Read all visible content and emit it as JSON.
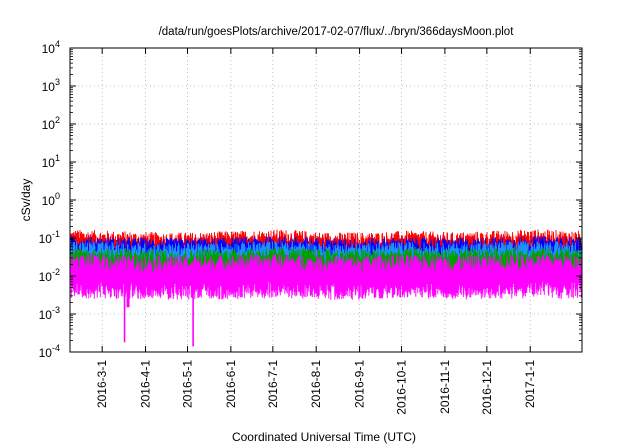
{
  "chart_data": {
    "type": "line",
    "title": "/data/run/goesPlots/archive/2017-02-07/flux/../bryn/366daysMoon.plot",
    "xlabel": "Coordinated Universal Time (UTC)",
    "ylabel": "cSv/day",
    "yscale": "log",
    "ylim": [
      0.0001,
      10000
    ],
    "xlim": [
      "2016-02-07",
      "2017-02-07"
    ],
    "y_ticks": [
      {
        "value": 0.0001,
        "base": "10",
        "exp": "-4"
      },
      {
        "value": 0.001,
        "base": "10",
        "exp": "-3"
      },
      {
        "value": 0.01,
        "base": "10",
        "exp": "-2"
      },
      {
        "value": 0.1,
        "base": "10",
        "exp": "-1"
      },
      {
        "value": 1,
        "base": "10",
        "exp": "0"
      },
      {
        "value": 10,
        "base": "10",
        "exp": "1"
      },
      {
        "value": 100,
        "base": "10",
        "exp": "2"
      },
      {
        "value": 1000,
        "base": "10",
        "exp": "3"
      },
      {
        "value": 10000,
        "base": "10",
        "exp": "4"
      }
    ],
    "x_ticks": [
      {
        "date": "2016-03-01",
        "label": "2016-3-1"
      },
      {
        "date": "2016-04-01",
        "label": "2016-4-1"
      },
      {
        "date": "2016-05-01",
        "label": "2016-5-1"
      },
      {
        "date": "2016-06-01",
        "label": "2016-6-1"
      },
      {
        "date": "2016-07-01",
        "label": "2016-7-1"
      },
      {
        "date": "2016-08-01",
        "label": "2016-8-1"
      },
      {
        "date": "2016-09-01",
        "label": "2016-9-1"
      },
      {
        "date": "2016-10-01",
        "label": "2016-10-1"
      },
      {
        "date": "2016-11-01",
        "label": "2016-11-1"
      },
      {
        "date": "2016-12-01",
        "label": "2016-12-1"
      },
      {
        "date": "2017-01-01",
        "label": "2017-1-1"
      }
    ],
    "grid": true,
    "legend": "none",
    "series": [
      {
        "color": "#ff0000",
        "values": [
          0.06,
          0.055,
          0.05,
          0.05,
          0.055,
          0.06,
          0.05,
          0.05,
          0.055,
          0.05,
          0.055,
          0.06,
          0.055,
          0.055
        ]
      },
      {
        "color": "#0000ff",
        "values": [
          0.04,
          0.037,
          0.035,
          0.035,
          0.037,
          0.04,
          0.035,
          0.035,
          0.037,
          0.035,
          0.037,
          0.04,
          0.037,
          0.037
        ]
      },
      {
        "color": "#1e90ff",
        "values": [
          0.03,
          0.028,
          0.026,
          0.026,
          0.028,
          0.03,
          0.026,
          0.026,
          0.028,
          0.026,
          0.028,
          0.03,
          0.028,
          0.028
        ]
      },
      {
        "color": "#00a000",
        "values": [
          0.02,
          0.019,
          0.018,
          0.018,
          0.019,
          0.02,
          0.018,
          0.018,
          0.019,
          0.018,
          0.019,
          0.02,
          0.019,
          0.019
        ]
      },
      {
        "color": "#ff00ff",
        "values": [
          0.01,
          0.0095,
          0.009,
          0.009,
          0.0095,
          0.01,
          0.009,
          0.009,
          0.0095,
          0.009,
          0.0095,
          0.01,
          0.0095,
          0.0095
        ]
      }
    ],
    "series_dates": [
      "2016-02-07",
      "2016-03-07",
      "2016-04-07",
      "2016-05-07",
      "2016-06-07",
      "2016-07-07",
      "2016-08-07",
      "2016-09-07",
      "2016-10-07",
      "2016-11-07",
      "2016-12-07",
      "2017-01-07",
      "2017-02-01",
      "2017-02-07"
    ],
    "dips": [
      {
        "date": "2016-03-17",
        "value": 0.00018,
        "color": "#ff00ff"
      },
      {
        "date": "2016-03-19",
        "value": 0.0015,
        "color": "#ff00ff"
      },
      {
        "date": "2016-03-20",
        "value": 0.0015,
        "color": "#ff00ff"
      },
      {
        "date": "2016-05-05",
        "value": 0.00014,
        "color": "#ff00ff"
      },
      {
        "date": "2016-09-30",
        "value": 0.0028,
        "color": "#ff00ff"
      }
    ]
  }
}
